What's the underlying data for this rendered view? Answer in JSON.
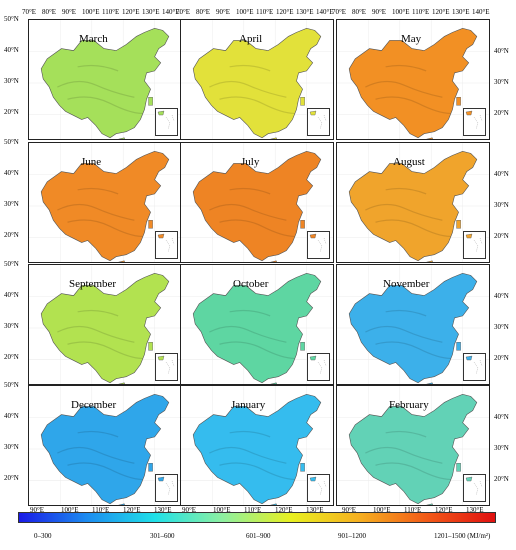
{
  "top_lon_labels": [
    "70°E",
    "80°E",
    "90°E",
    "100°E",
    "110°E",
    "120°E",
    "130°E",
    "140°E"
  ],
  "bottom_lon_labels": [
    "90°E",
    "100°E",
    "110°E",
    "120°E",
    "130°E"
  ],
  "lat_labels": [
    "50°N",
    "40°N",
    "30°N",
    "20°N"
  ],
  "right_lat_labels": [
    "40°N",
    "30°N",
    "20°N"
  ],
  "panels": [
    {
      "month": "March",
      "fill": "#a5e05a"
    },
    {
      "month": "April",
      "fill": "#e2e13a"
    },
    {
      "month": "May",
      "fill": "#f29024"
    },
    {
      "month": "June",
      "fill": "#f08a26"
    },
    {
      "month": "July",
      "fill": "#ee8424"
    },
    {
      "month": "August",
      "fill": "#f0a42c"
    },
    {
      "month": "September",
      "fill": "#b2e250"
    },
    {
      "month": "October",
      "fill": "#5ed6a2"
    },
    {
      "month": "November",
      "fill": "#3cb0ea"
    },
    {
      "month": "December",
      "fill": "#2fa6ea"
    },
    {
      "month": "January",
      "fill": "#35bcee"
    },
    {
      "month": "February",
      "fill": "#62d2b6"
    }
  ],
  "legend": {
    "classes": [
      "0–300",
      "301–600",
      "601–900",
      "901–1200",
      "1201–1500 (MJ/m²)"
    ],
    "gradient": [
      "#1a1ae6",
      "#1c8cf0",
      "#20e0e8",
      "#8ef0a0",
      "#e8f020",
      "#f6b020",
      "#f25a18",
      "#e01010"
    ]
  }
}
